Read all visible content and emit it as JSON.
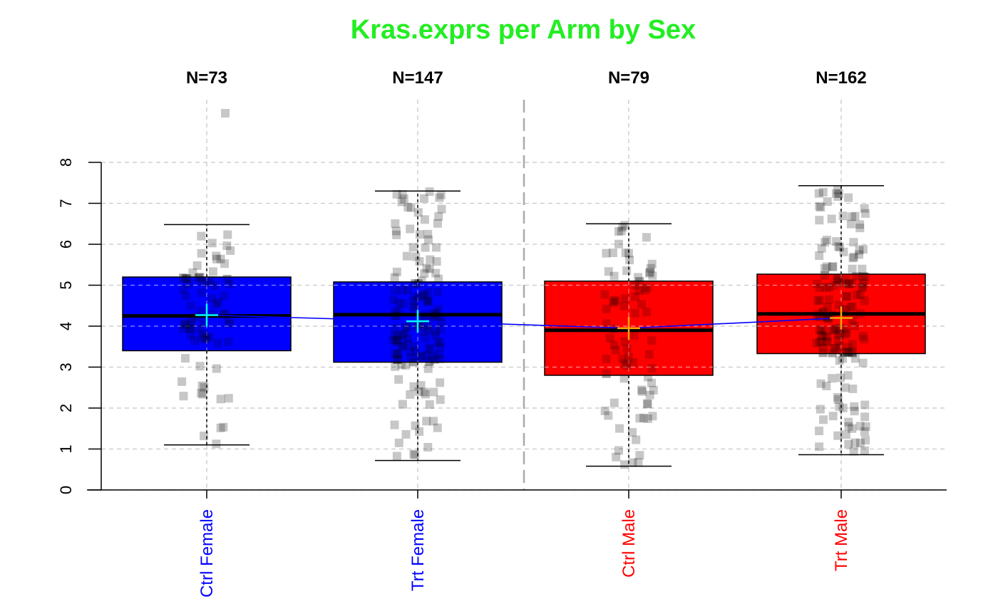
{
  "chart_data": {
    "type": "boxplot",
    "title": "Kras.exprs per Arm by Sex",
    "title_color": "#22ee22",
    "ylim": [
      0,
      8
    ],
    "yticks": [
      0,
      1,
      2,
      3,
      4,
      5,
      6,
      7,
      8
    ],
    "grid": true,
    "categories": [
      "Ctrl Female",
      "Trt Female",
      "Ctrl Male",
      "Trt Male"
    ],
    "category_colors": [
      "#0000ff",
      "#0000ff",
      "#ff0000",
      "#ff0000"
    ],
    "box_fill": [
      "#0000ff",
      "#0000ff",
      "#ff0000",
      "#ff0000"
    ],
    "mean_marker_colors": [
      "#00ffff",
      "#00ffff",
      "#ffa500",
      "#ffa500"
    ],
    "mean_line_color": "#0000ff",
    "n_labels": [
      "N=73",
      "N=147",
      "N=79",
      "N=162"
    ],
    "boxes": [
      {
        "whisker_low": 1.1,
        "q1": 3.4,
        "median": 4.25,
        "q3": 5.2,
        "whisker_high": 6.48,
        "mean": 4.27,
        "outliers_high": [
          9.2
        ]
      },
      {
        "whisker_low": 0.72,
        "q1": 3.12,
        "median": 4.28,
        "q3": 5.08,
        "whisker_high": 7.3,
        "mean": 4.12,
        "outliers_high": []
      },
      {
        "whisker_low": 0.58,
        "q1": 2.8,
        "median": 3.9,
        "q3": 5.1,
        "whisker_high": 6.5,
        "mean": 3.95,
        "outliers_high": []
      },
      {
        "whisker_low": 0.86,
        "q1": 3.33,
        "median": 4.3,
        "q3": 5.27,
        "whisker_high": 7.43,
        "mean": 4.2,
        "outliers_high": []
      }
    ]
  }
}
